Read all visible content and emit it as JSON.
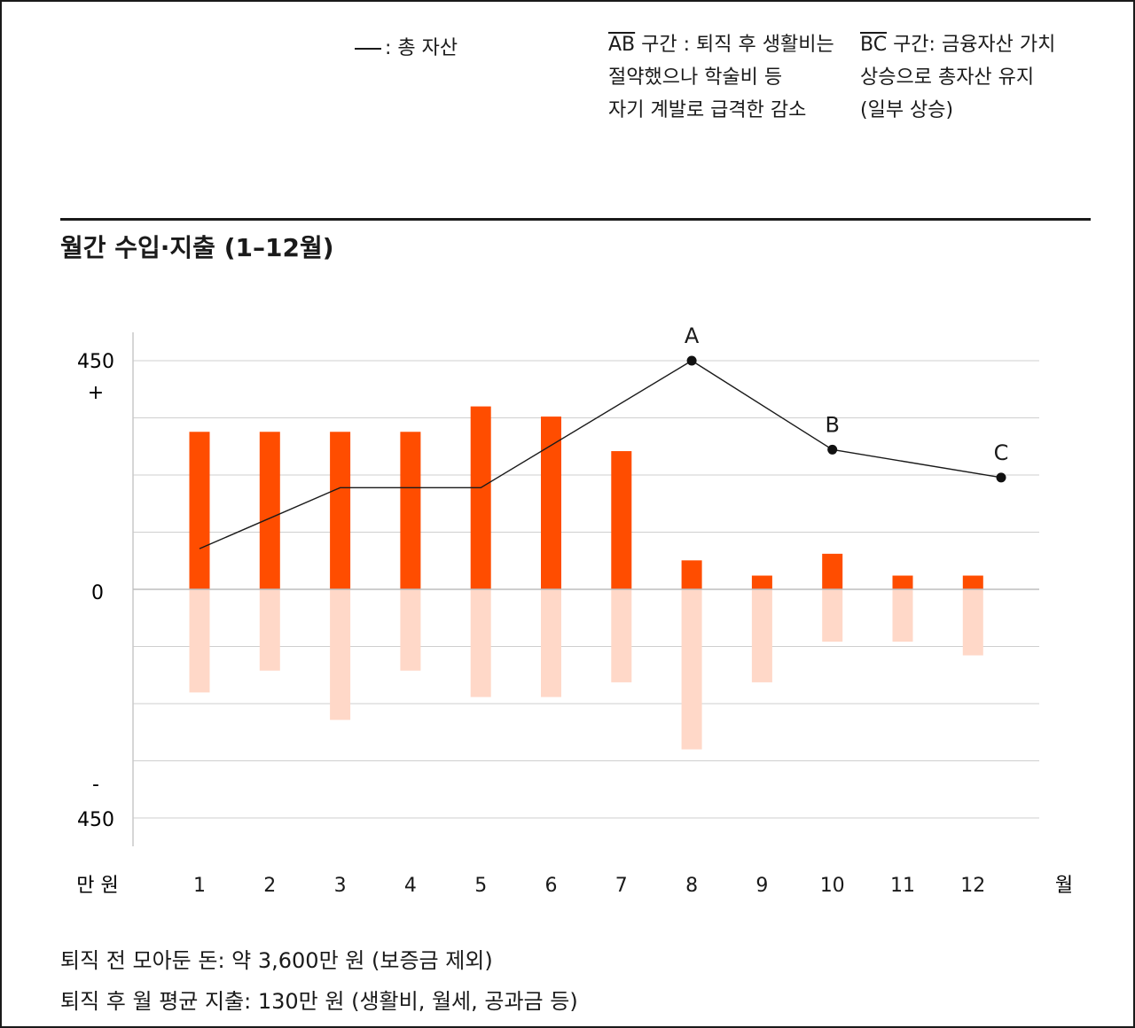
{
  "legend": {
    "total_assets": ": 총 자산"
  },
  "notes": {
    "ab": {
      "segment": "AB",
      "lines": [
        " 구간 : 퇴직 후 생활비는",
        "절약했으나 학술비 등",
        "자기 계발로 급격한 감소"
      ]
    },
    "bc": {
      "segment": "BC",
      "lines": [
        " 구간: 금융자산 가치",
        "상승으로 총자산 유지",
        "(일부 상승)"
      ]
    }
  },
  "chart_title": "월간 수입·지출 (1–12월)",
  "footnotes": [
    "퇴직 전 모아둔 돈: 약 3,600만 원 (보증금 제외)",
    "퇴직 후 월 평균 지출: 130만 원 (생활비, 월세, 공과금 등)"
  ],
  "chart_data": {
    "type": "bar",
    "categories": [
      "1",
      "2",
      "3",
      "4",
      "5",
      "6",
      "7",
      "8",
      "9",
      "10",
      "11",
      "12"
    ],
    "xlabel": "월",
    "ylabel": "만 원",
    "ylim": [
      -450,
      450
    ],
    "y_tick_labels": {
      "top_sign": "+",
      "top": "450",
      "zero": "0",
      "bottom_sign": "-",
      "bottom": "450"
    },
    "grid": true,
    "series": [
      {
        "values": [
          310,
          310,
          310,
          310,
          360,
          340,
          272,
          57,
          27,
          70,
          27,
          27
        ],
        "color": "#ff4d00"
      },
      {
        "values": [
          -203,
          -160,
          -257,
          -160,
          -212,
          -212,
          -183,
          -315,
          -183,
          -103,
          -103,
          -130
        ],
        "color": "#ffd8c8"
      }
    ],
    "total_assets_line": {
      "color": "#1a1a1a",
      "x": [
        1,
        3,
        5,
        8,
        10,
        12.4
      ],
      "y": [
        80,
        200,
        200,
        450,
        275,
        220
      ],
      "points": [
        {
          "label": "A",
          "x": 8,
          "y": 450
        },
        {
          "label": "B",
          "x": 10,
          "y": 275
        },
        {
          "label": "C",
          "x": 12.4,
          "y": 220
        }
      ]
    }
  }
}
